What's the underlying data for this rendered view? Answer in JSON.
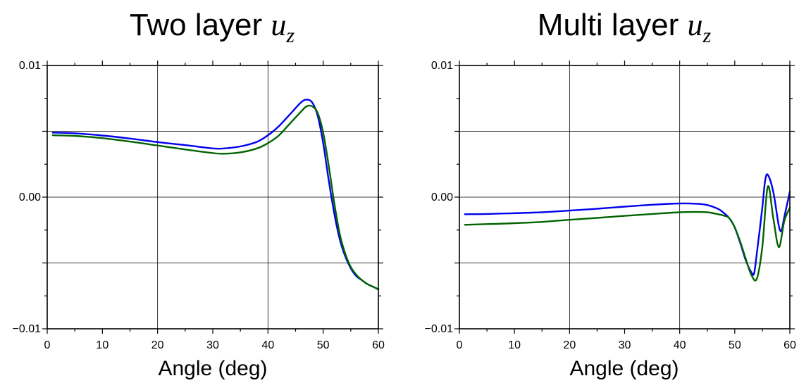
{
  "chart_data": [
    {
      "type": "line",
      "title": {
        "text": "Two layer ",
        "variable": "u",
        "subscript": "z"
      },
      "xlabel": "Angle (deg)",
      "ylabel": "",
      "xlim": [
        0,
        60
      ],
      "ylim": [
        -0.01,
        0.01
      ],
      "xticks": [
        0,
        10,
        20,
        30,
        40,
        50,
        60
      ],
      "xtick_labels": [
        "0",
        "10",
        "20",
        "30",
        "40",
        "50",
        "60"
      ],
      "yticks": [
        -0.01,
        0.0,
        0.01
      ],
      "ytick_labels": [
        "−0.01",
        "0.00",
        "0.01"
      ],
      "grid": true,
      "grid_x": [
        20,
        40
      ],
      "grid_y": [
        -0.005,
        0.0,
        0.005
      ],
      "series": [
        {
          "color": "#0000ee",
          "x": [
            1,
            5,
            10,
            15,
            20,
            25,
            30,
            32,
            35,
            38,
            40,
            42,
            44,
            46,
            47,
            48,
            49,
            50,
            51,
            52,
            53,
            54,
            55,
            56,
            57,
            58,
            59,
            60
          ],
          "y": [
            0.0049,
            0.00485,
            0.00468,
            0.00445,
            0.00418,
            0.00395,
            0.0037,
            0.0037,
            0.00385,
            0.0042,
            0.0047,
            0.0054,
            0.0063,
            0.0072,
            0.0074,
            0.0072,
            0.0062,
            0.0041,
            0.0013,
            -0.0012,
            -0.0032,
            -0.0045,
            -0.0054,
            -0.006,
            -0.0063,
            -0.0066,
            -0.0068,
            -0.007
          ]
        },
        {
          "color": "#006400",
          "x": [
            1,
            5,
            10,
            15,
            20,
            25,
            30,
            32,
            35,
            38,
            40,
            42,
            44,
            46,
            47,
            48,
            49,
            50,
            51,
            52,
            53,
            54,
            55,
            56,
            57,
            58,
            59,
            60
          ],
          "y": [
            0.0047,
            0.00465,
            0.00448,
            0.00422,
            0.00392,
            0.00362,
            0.00335,
            0.0033,
            0.0034,
            0.0037,
            0.0041,
            0.0047,
            0.0056,
            0.0065,
            0.0069,
            0.0069,
            0.0064,
            0.0049,
            0.0024,
            -0.0004,
            -0.0028,
            -0.0043,
            -0.0053,
            -0.0059,
            -0.0063,
            -0.0066,
            -0.0068,
            -0.007
          ]
        }
      ]
    },
    {
      "type": "line",
      "title": {
        "text": "Multi layer  ",
        "variable": "u",
        "subscript": "z"
      },
      "xlabel": "Angle (deg)",
      "ylabel": "",
      "xlim": [
        0,
        60
      ],
      "ylim": [
        -0.01,
        0.01
      ],
      "xticks": [
        0,
        10,
        20,
        30,
        40,
        50,
        60
      ],
      "xtick_labels": [
        "0",
        "10",
        "20",
        "30",
        "40",
        "50",
        "60"
      ],
      "yticks": [
        -0.01,
        0.0,
        0.01
      ],
      "ytick_labels": [
        "−0.01",
        "0.00",
        "0.01"
      ],
      "grid": true,
      "grid_x": [
        20,
        40
      ],
      "grid_y": [
        -0.005,
        0.0,
        0.005
      ],
      "series": [
        {
          "color": "#0000ee",
          "x": [
            1,
            5,
            10,
            15,
            20,
            25,
            30,
            35,
            40,
            43,
            45,
            47,
            48,
            49,
            50,
            51,
            52,
            53,
            53.5,
            54,
            55,
            55.5,
            56,
            57,
            58,
            58.5,
            59,
            60
          ],
          "y": [
            -0.0013,
            -0.00128,
            -0.00122,
            -0.00115,
            -0.00102,
            -0.00088,
            -0.00072,
            -0.00058,
            -0.00048,
            -0.0005,
            -0.0006,
            -0.0009,
            -0.0012,
            -0.0016,
            -0.0023,
            -0.0035,
            -0.0048,
            -0.0057,
            -0.0058,
            -0.0043,
            -0.0008,
            0.0012,
            0.0017,
            0.0004,
            -0.0022,
            -0.0025,
            -0.0015,
            0.0004
          ]
        },
        {
          "color": "#006400",
          "x": [
            1,
            5,
            10,
            15,
            20,
            25,
            30,
            35,
            40,
            43,
            45,
            47,
            48,
            49,
            50,
            51,
            52,
            53,
            54,
            55,
            56,
            57,
            58,
            59,
            60
          ],
          "y": [
            -0.0021,
            -0.00205,
            -0.00198,
            -0.00188,
            -0.00172,
            -0.00158,
            -0.00142,
            -0.00128,
            -0.00115,
            -0.00113,
            -0.00115,
            -0.0013,
            -0.0014,
            -0.0016,
            -0.0023,
            -0.0034,
            -0.0047,
            -0.0059,
            -0.0062,
            -0.0038,
            0.0008,
            -0.0016,
            -0.0038,
            -0.0018,
            -0.0008
          ]
        }
      ]
    }
  ]
}
